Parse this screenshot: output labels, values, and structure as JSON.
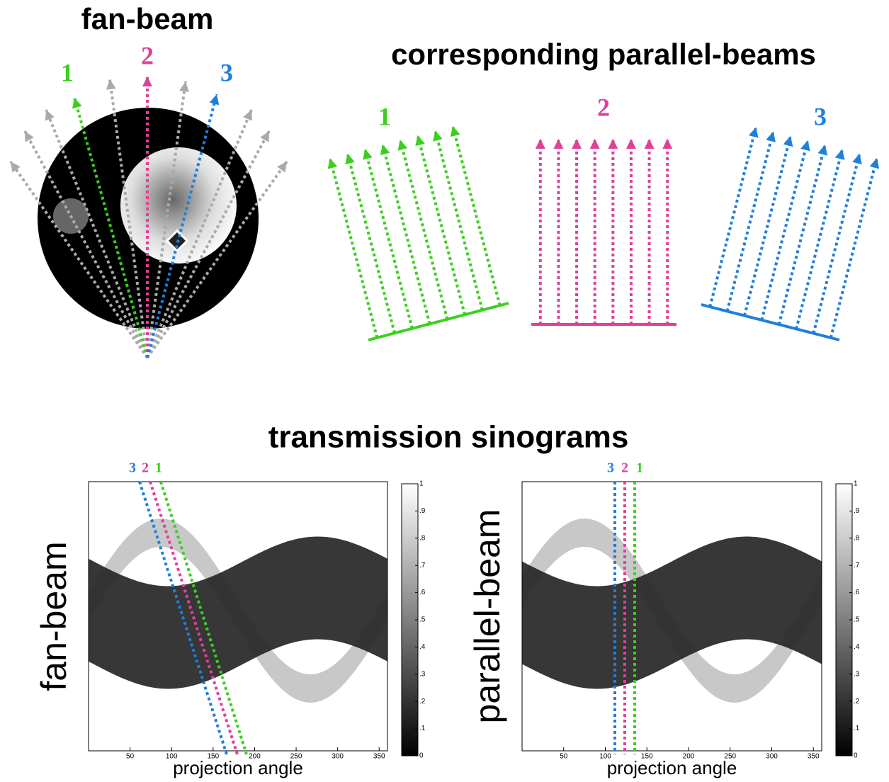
{
  "fan_beam_panel": {
    "title": "fan-beam",
    "ray_labels": [
      "1",
      "2",
      "3"
    ]
  },
  "parallel_panel": {
    "title": "corresponding parallel-beams",
    "beam_labels": [
      "1",
      "2",
      "3"
    ]
  },
  "sinograms": {
    "title": "transmission sinograms",
    "plots": [
      {
        "ylabel": "fan-beam",
        "xlabel": "projection angle",
        "xlim": [
          0,
          360
        ],
        "xticks": [
          50,
          100,
          150,
          200,
          250,
          300,
          350
        ],
        "line_labels": [
          "3",
          "2",
          "1"
        ],
        "colorbar": {
          "lim": [
            0,
            1
          ],
          "ticks": [
            0,
            {
              "value": 0.1,
              "label": ".1"
            },
            {
              "value": 0.2,
              "label": ".2"
            },
            {
              "value": 0.3,
              "label": ".3"
            },
            {
              "value": 0.4,
              "label": ".4"
            },
            {
              "value": 0.5,
              "label": ".5"
            },
            {
              "value": 0.6,
              "label": ".6"
            },
            {
              "value": 0.7,
              "label": ".7"
            },
            {
              "value": 0.8,
              "label": ".8"
            },
            {
              "value": 0.9,
              "label": ".9"
            },
            1
          ]
        }
      },
      {
        "ylabel": "parallel-beam",
        "xlabel": "projection angle",
        "xlim": [
          0,
          360
        ],
        "xticks": [
          50,
          100,
          150,
          200,
          250,
          300,
          350
        ],
        "line_labels": [
          "3",
          "2",
          "1"
        ],
        "colorbar": {
          "lim": [
            0,
            1
          ],
          "ticks": [
            0,
            {
              "value": 0.1,
              "label": ".1"
            },
            {
              "value": 0.2,
              "label": ".2"
            },
            {
              "value": 0.3,
              "label": ".3"
            },
            {
              "value": 0.4,
              "label": ".4"
            },
            {
              "value": 0.5,
              "label": ".5"
            },
            {
              "value": 0.6,
              "label": ".6"
            },
            {
              "value": 0.7,
              "label": ".7"
            },
            {
              "value": 0.8,
              "label": ".8"
            },
            {
              "value": 0.9,
              "label": ".9"
            },
            1
          ]
        }
      }
    ]
  }
}
